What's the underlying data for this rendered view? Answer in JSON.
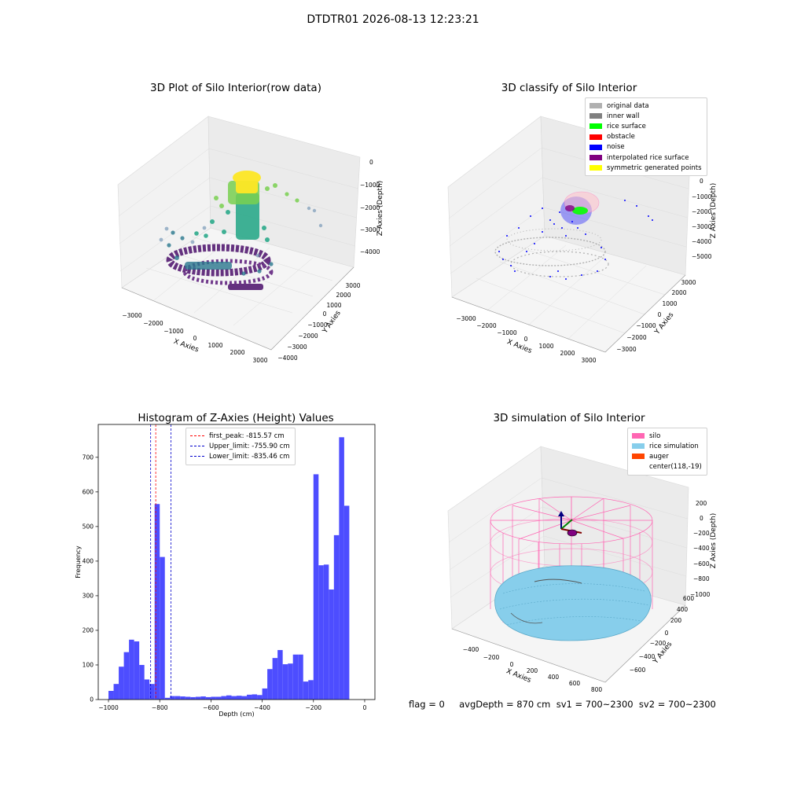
{
  "suptitle": "DTDTR01 2026-08-13 12:23:21",
  "footer": "flag = 0     avgDepth = 870 cm  sv1 = 700~2300  sv2 = 700~2300",
  "colors": {
    "hist_bar": "#4d4dff",
    "first_peak": "#ff0000",
    "limits": "#0000cc",
    "silo": "#ff66b3",
    "rice": "#87ceeb",
    "auger": "#ff4500",
    "original": "#b0b0b0",
    "inner_wall": "#808080",
    "rice_surface": "#00ff00",
    "obstacle": "#ff0000",
    "noise": "#0000ff",
    "interp": "#800080",
    "symmetric": "#ffff00"
  },
  "plots": {
    "raw": {
      "title": "3D Plot of Silo Interior(row data)",
      "xlabel": "X Axies",
      "ylabel": "Y Axies",
      "zlabel": "Z Axies (Depth)",
      "xticks": [
        "−3000",
        "−2000",
        "−1000",
        "0",
        "1000",
        "2000",
        "3000"
      ],
      "yticks": [
        "−4000",
        "−3000",
        "−2000",
        "−1000",
        "0",
        "1000",
        "2000",
        "3000"
      ],
      "zticks": [
        "0",
        "−1000",
        "−2000",
        "−3000",
        "−4000"
      ]
    },
    "classify": {
      "title": "3D classify of Silo Interior",
      "xlabel": "X Axies",
      "ylabel": "Y Axies",
      "zlabel": "Z Axies (Depth)",
      "xticks": [
        "−3000",
        "−2000",
        "−1000",
        "0",
        "1000",
        "2000",
        "3000"
      ],
      "yticks": [
        "−3000",
        "−2000",
        "−1000",
        "0",
        "1000",
        "2000",
        "3000"
      ],
      "zticks": [
        "0",
        "−1000",
        "−2000",
        "−3000",
        "−4000",
        "−5000"
      ],
      "legend": [
        "original data",
        "inner wall",
        "rice surface",
        "obstacle",
        "noise",
        "interpolated rice surface",
        "symmetric generated points"
      ]
    },
    "simulation": {
      "title": "3D simulation of Silo Interior",
      "xlabel": "X Axies",
      "ylabel": "Y Axies",
      "zlabel": "Z Axies (Depth)",
      "xticks": [
        "−400",
        "−200",
        "0",
        "200",
        "400",
        "600",
        "800"
      ],
      "yticks": [
        "−600",
        "−400",
        "−200",
        "0",
        "200",
        "400",
        "600"
      ],
      "zticks": [
        "200",
        "0",
        "−200",
        "−400",
        "−600",
        "−800",
        "−1000"
      ],
      "legend": [
        "silo",
        "rice simulation",
        "auger",
        "center(118,-19)"
      ]
    }
  },
  "chart_data": {
    "type": "bar",
    "title": "Histogram of Z-Axies (Height) Values",
    "xlabel": "Depth (cm)",
    "ylabel": "Frequency",
    "xlim": [
      -1040,
      40
    ],
    "ylim": [
      0,
      795
    ],
    "xticks": [
      -1000,
      -800,
      -600,
      -400,
      -200,
      0
    ],
    "xtick_labels": [
      "−1000",
      "−800",
      "−600",
      "−400",
      "−200",
      "0"
    ],
    "yticks": [
      0,
      100,
      200,
      300,
      400,
      500,
      600,
      700
    ],
    "bin_start": -1000,
    "bin_width": 20,
    "values": [
      25,
      45,
      95,
      137,
      173,
      168,
      100,
      58,
      45,
      565,
      412,
      5,
      10,
      10,
      9,
      8,
      7,
      8,
      9,
      7,
      8,
      8,
      10,
      12,
      10,
      11,
      10,
      14,
      15,
      13,
      32,
      88,
      120,
      143,
      102,
      104,
      130,
      130,
      52,
      56,
      651,
      388,
      390,
      318,
      475,
      758,
      560
    ],
    "lines": [
      {
        "label": "first_peak: -815.57 cm",
        "x": -815.57,
        "style": "dashed",
        "color": "#ff0000"
      },
      {
        "label": "Upper_limit: -755.90 cm",
        "x": -755.9,
        "style": "dashed",
        "color": "#0000cc"
      },
      {
        "label": "Lower_limit: -835.46 cm",
        "x": -835.46,
        "style": "dashed",
        "color": "#0000cc"
      }
    ],
    "legend_position": "upper-center"
  }
}
